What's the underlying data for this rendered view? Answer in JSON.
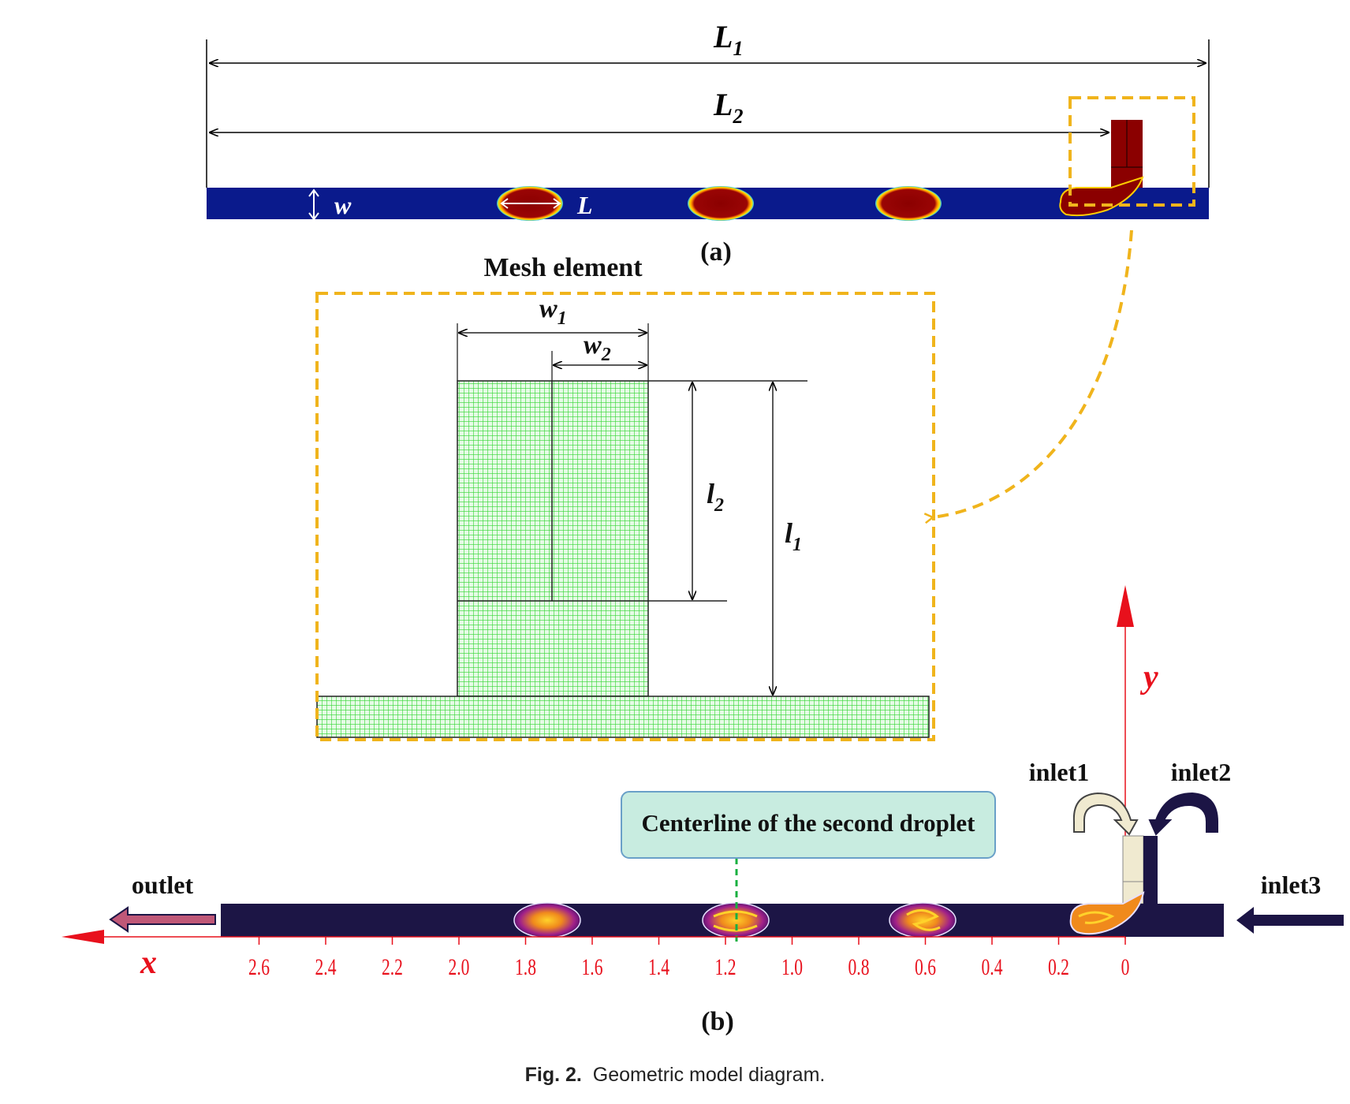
{
  "panel_a": {
    "label": "(a)",
    "dims": {
      "L1": "L",
      "L1_sub": "1",
      "L2": "L",
      "L2_sub": "2",
      "w": "w",
      "L": "L"
    }
  },
  "mesh": {
    "title": "Mesh element",
    "dims": {
      "w1": "w",
      "w1_sub": "1",
      "w2": "w",
      "w2_sub": "2",
      "l2": "l",
      "l2_sub": "2",
      "l1": "l",
      "l1_sub": "1"
    }
  },
  "panel_b": {
    "label": "(b)",
    "axis_x_label": "x",
    "axis_y_label": "y",
    "ticks": [
      "2.6",
      "2.4",
      "2.2",
      "2.0",
      "1.8",
      "1.6",
      "1.4",
      "1.2",
      "1.0",
      "0.8",
      "0.6",
      "0.4",
      "0.2",
      "0"
    ],
    "inlet1": "inlet1",
    "inlet2": "inlet2",
    "inlet3": "inlet3",
    "outlet": "outlet",
    "centerline_label": "Centerline of the second droplet"
  },
  "caption": {
    "fig_label": "Fig. 2.",
    "text": "Geometric model diagram."
  },
  "colors": {
    "channel_a": "#0a1a8c",
    "droplet_a": "#8b0000",
    "channel_b": "#1c1545",
    "highlight": "#f0b41c",
    "mesh_green": "#33d633",
    "axis_red": "#e8101c",
    "callout_fill": "#c8ece0",
    "callout_border": "#6aa0c8"
  }
}
